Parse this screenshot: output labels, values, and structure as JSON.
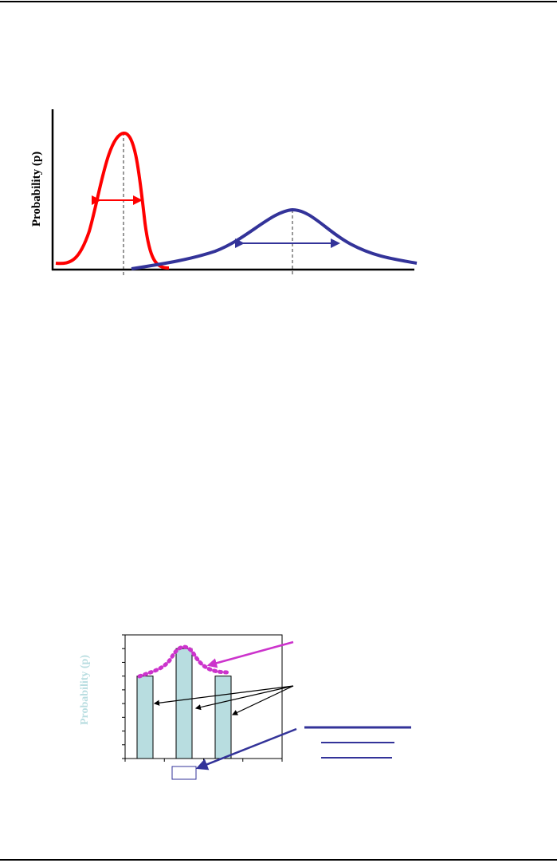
{
  "header_rule": true,
  "figure1": {
    "ylabel": "Probability (p)",
    "colors": {
      "narrow": "#ff0000",
      "wide": "#333399"
    },
    "curves": [
      {
        "color_key": "narrow",
        "shape": "narrow tall peak"
      },
      {
        "color_key": "wide",
        "shape": "broad low peak"
      }
    ]
  },
  "chart_data": {
    "type": "bar",
    "ylabel": "Probability (p)",
    "ylabel_color": "#b8dde0",
    "categories": [
      "",
      "",
      ""
    ],
    "values": [
      6,
      8,
      6
    ],
    "ylim": [
      0,
      9
    ],
    "grid": false,
    "bar_color": "#b8dde0",
    "envelope_color": "#cc33cc",
    "arrow_colors": {
      "envelope": "#cc33cc",
      "bars": "#000000",
      "box": "#333399"
    }
  }
}
